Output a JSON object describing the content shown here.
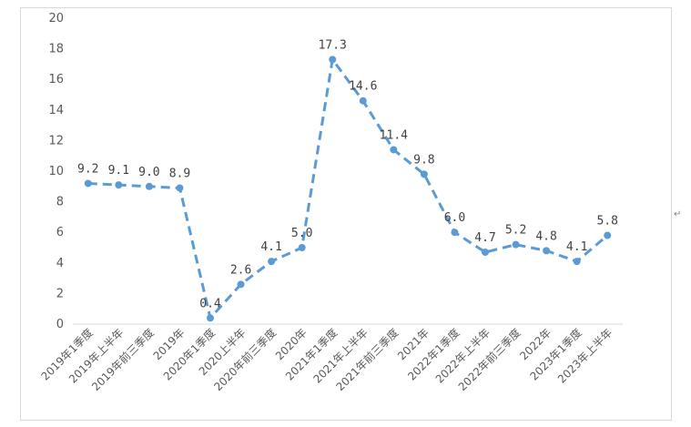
{
  "chart_data": {
    "type": "line",
    "title": "",
    "xlabel": "",
    "ylabel": "",
    "ylim": [
      0,
      20
    ],
    "yticks": [
      0,
      2,
      4,
      6,
      8,
      10,
      12,
      14,
      16,
      18,
      20
    ],
    "grid": false,
    "legend": "none",
    "categories": [
      "2019年1季度",
      "2019年上半年",
      "2019年前三季度",
      "2019年",
      "2020年1季度",
      "2020上半年",
      "2020年前三季度",
      "2020年",
      "2021年1季度",
      "2021年上半年",
      "2021年前三季度",
      "2021年",
      "2022年1季度",
      "2022年上半年",
      "2022年前三季度",
      "2022年",
      "2023年1季度",
      "2023年上半年"
    ],
    "series": [
      {
        "values": [
          9.2,
          9.1,
          9.0,
          8.9,
          0.4,
          2.6,
          4.1,
          5.0,
          17.3,
          14.6,
          11.4,
          9.8,
          6.0,
          4.7,
          5.2,
          4.8,
          4.1,
          5.8
        ],
        "data_labels": [
          "9.2",
          "9.1",
          "9.0",
          "8.9",
          "0.4",
          "2.6",
          "4.1",
          "5.0",
          "17.3",
          "14.6",
          "11.4",
          "9.8",
          "6.0",
          "4.7",
          "5.2",
          "4.8",
          "4.1",
          "5.8"
        ],
        "color": "#5b9bd5",
        "line_style": "dashed",
        "marker": "circle"
      }
    ]
  },
  "paragraph_mark": "↵"
}
